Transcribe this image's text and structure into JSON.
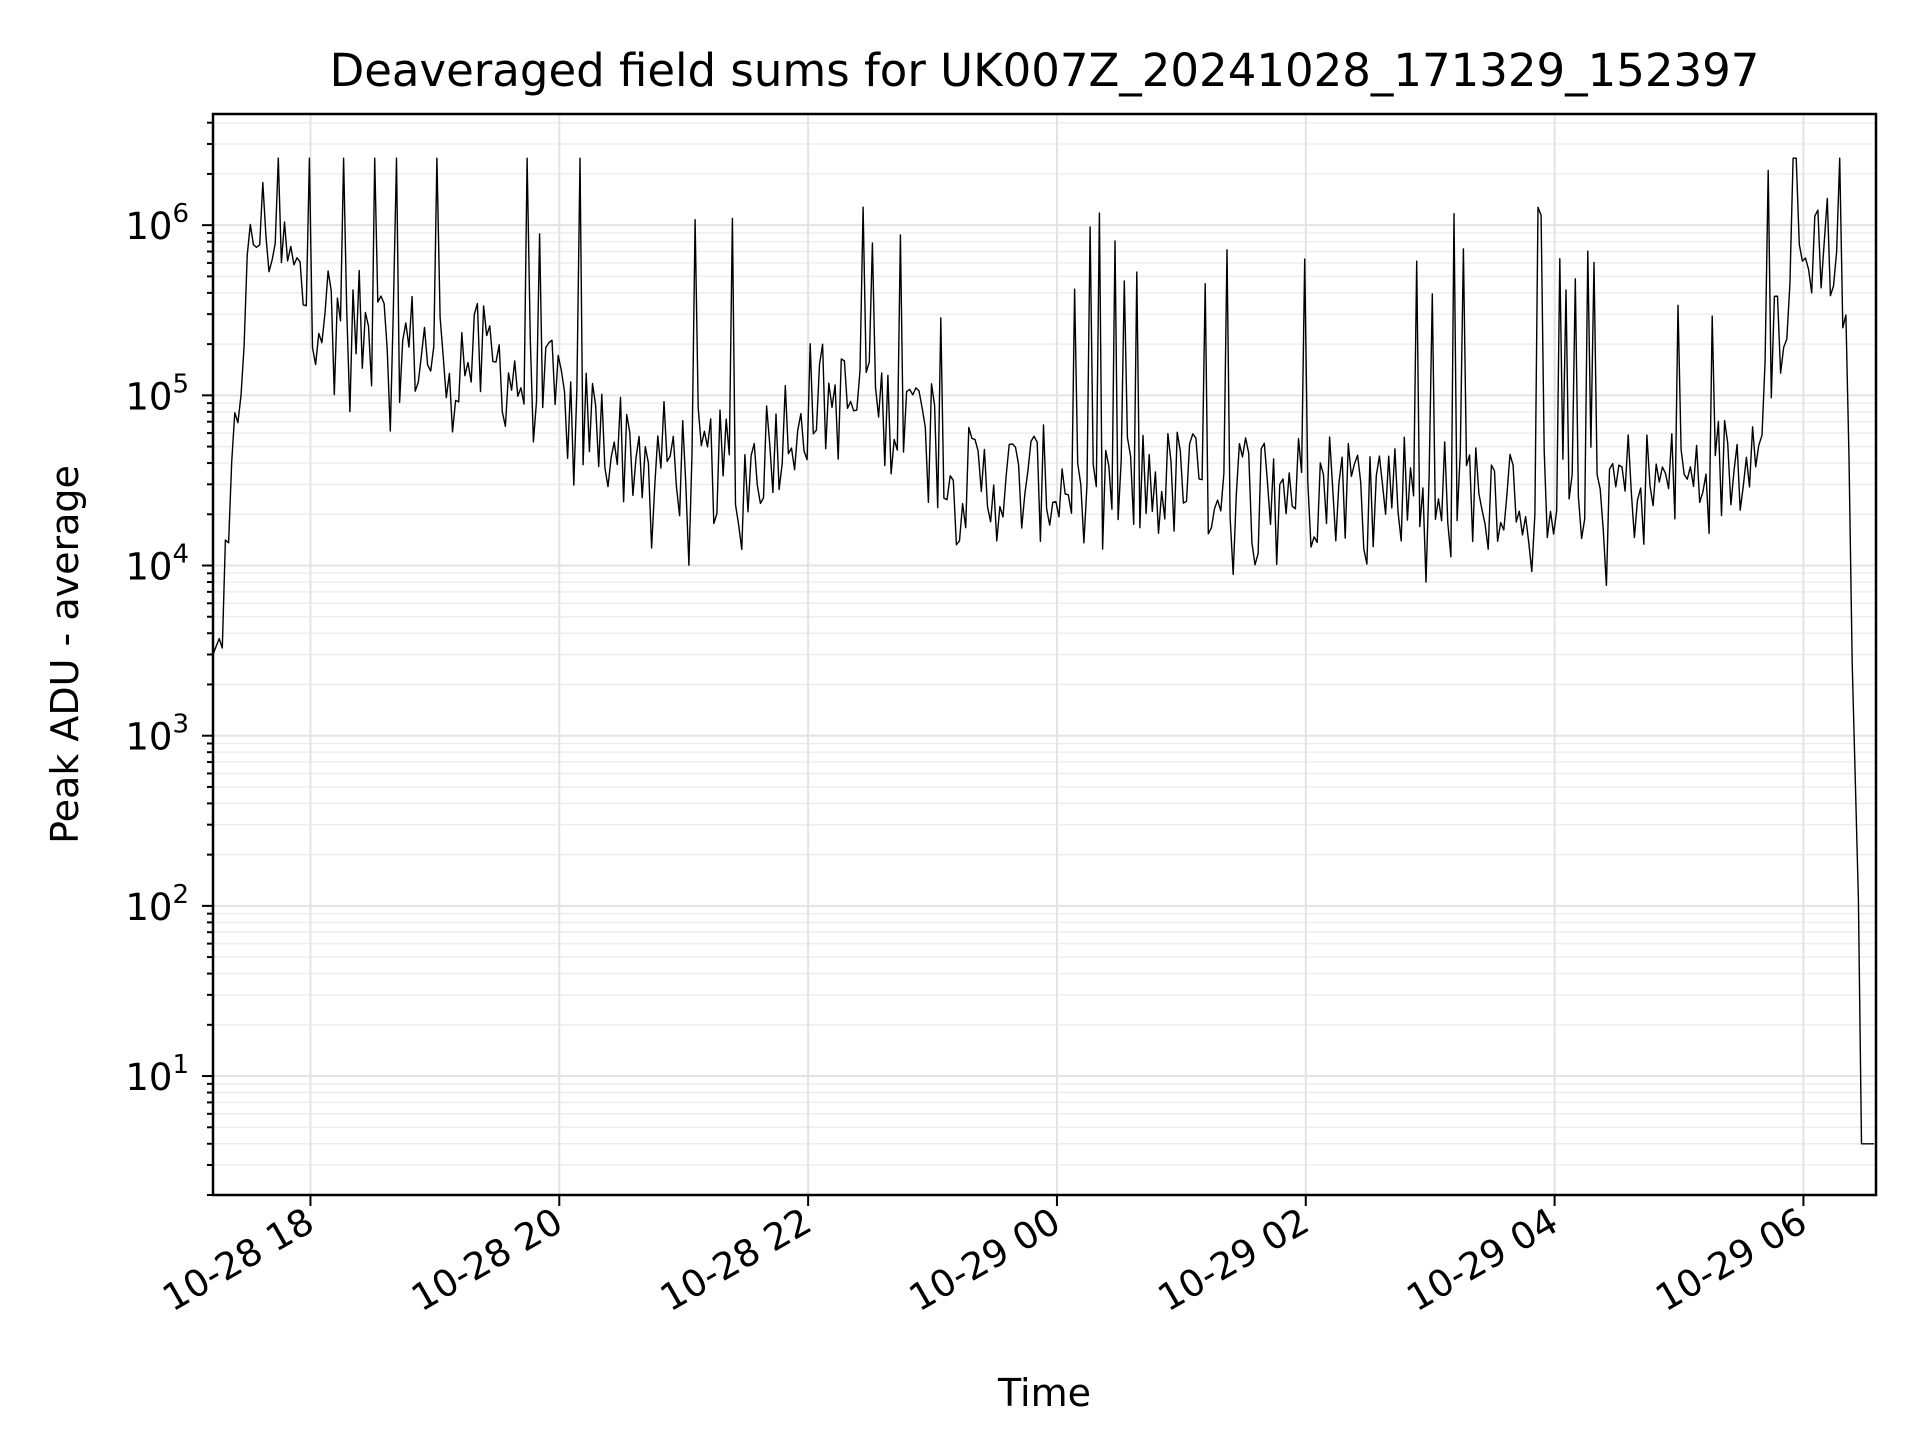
{
  "chart_data": {
    "type": "line",
    "title": "Deaveraged field sums for UK007Z_20241028_171329_152397",
    "xlabel": "Time",
    "ylabel": "Peak ADU - average",
    "yscale": "log",
    "ylim": [
      2,
      4500000
    ],
    "xlim": [
      "2024-10-28 17:13",
      "2024-10-29 06:35"
    ],
    "grid": "major+minor",
    "x_ticks": [
      {
        "label": "10-28 18",
        "t": "2024-10-28 18:00"
      },
      {
        "label": "10-28 20",
        "t": "2024-10-28 20:00"
      },
      {
        "label": "10-28 22",
        "t": "2024-10-28 22:00"
      },
      {
        "label": "10-29 00",
        "t": "2024-10-29 00:00"
      },
      {
        "label": "10-29 02",
        "t": "2024-10-29 02:00"
      },
      {
        "label": "10-29 04",
        "t": "2024-10-29 04:00"
      },
      {
        "label": "10-29 06",
        "t": "2024-10-29 06:00"
      }
    ],
    "y_ticks": [
      {
        "base": "10",
        "exp": "1",
        "value": 10
      },
      {
        "base": "10",
        "exp": "2",
        "value": 100
      },
      {
        "base": "10",
        "exp": "3",
        "value": 1000
      },
      {
        "base": "10",
        "exp": "4",
        "value": 10000
      },
      {
        "base": "10",
        "exp": "5",
        "value": 100000
      },
      {
        "base": "10",
        "exp": "6",
        "value": 1000000
      }
    ],
    "series": [
      {
        "color": "#000000",
        "points": [
          [
            "2024-10-28 17:13",
            3000
          ],
          [
            "2024-10-28 17:17",
            4000
          ],
          [
            "2024-10-28 17:20",
            8000
          ],
          [
            "2024-10-28 17:24",
            60000
          ],
          [
            "2024-10-28 17:28",
            300000
          ],
          [
            "2024-10-28 17:33",
            900000
          ],
          [
            "2024-10-28 17:38",
            1000000
          ],
          [
            "2024-10-28 17:45",
            700000
          ],
          [
            "2024-10-28 18:00",
            350000
          ],
          [
            "2024-10-28 18:30",
            220000
          ],
          [
            "2024-10-28 19:00",
            180000
          ],
          [
            "2024-10-28 19:30",
            150000
          ],
          [
            "2024-10-28 20:00",
            90000
          ],
          [
            "2024-10-28 20:30",
            50000
          ],
          [
            "2024-10-28 21:00",
            40000
          ],
          [
            "2024-10-28 21:30",
            35000
          ],
          [
            "2024-10-28 22:00",
            100000
          ],
          [
            "2024-10-28 22:30",
            80000
          ],
          [
            "2024-10-28 23:00",
            70000
          ],
          [
            "2024-10-28 23:05",
            30000
          ],
          [
            "2024-10-29 00:00",
            30000
          ],
          [
            "2024-10-29 01:00",
            30000
          ],
          [
            "2024-10-29 02:00",
            30000
          ],
          [
            "2024-10-29 03:00",
            30000
          ],
          [
            "2024-10-29 04:00",
            30000
          ],
          [
            "2024-10-29 05:00",
            30000
          ],
          [
            "2024-10-29 05:30",
            40000
          ],
          [
            "2024-10-29 05:45",
            200000
          ],
          [
            "2024-10-29 06:00",
            600000
          ],
          [
            "2024-10-29 06:08",
            900000
          ],
          [
            "2024-10-29 06:15",
            700000
          ],
          [
            "2024-10-29 06:20",
            200000
          ],
          [
            "2024-10-29 06:22",
            50000
          ],
          [
            "2024-10-29 06:24",
            1000
          ],
          [
            "2024-10-29 06:26",
            300
          ],
          [
            "2024-10-29 06:27",
            40
          ],
          [
            "2024-10-29 06:28",
            4
          ],
          [
            "2024-10-29 06:35",
            4
          ]
        ]
      }
    ]
  }
}
